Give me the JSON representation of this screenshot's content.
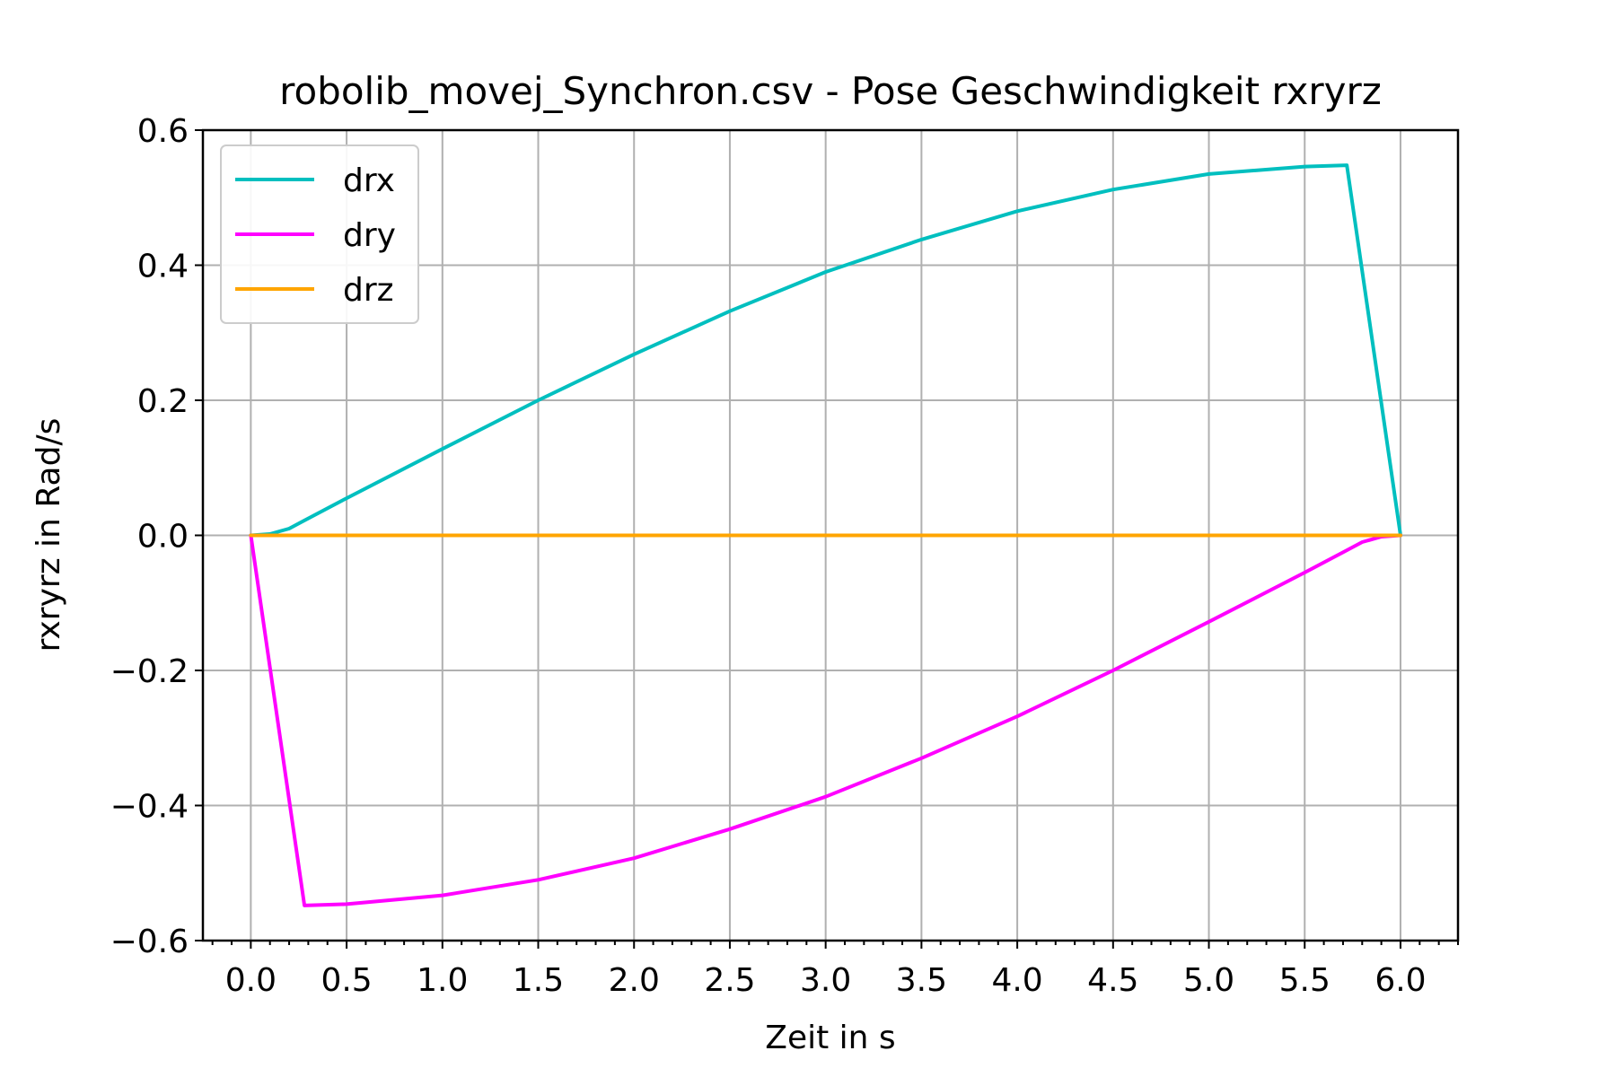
{
  "chart_data": {
    "type": "line",
    "title": "robolib_movej_Synchron.csv - Pose Geschwindigkeit rxryrz",
    "xlabel": "Zeit in s",
    "ylabel": "rxryrz in Rad/s",
    "xlim": [
      -0.25,
      6.3
    ],
    "ylim": [
      -0.6,
      0.6
    ],
    "xticks": [
      0.0,
      0.5,
      1.0,
      1.5,
      2.0,
      2.5,
      3.0,
      3.5,
      4.0,
      4.5,
      5.0,
      5.5,
      6.0
    ],
    "xtick_labels": [
      "0.0",
      "0.5",
      "1.0",
      "1.5",
      "2.0",
      "2.5",
      "3.0",
      "3.5",
      "4.0",
      "4.5",
      "5.0",
      "5.5",
      "6.0"
    ],
    "yticks": [
      -0.6,
      -0.4,
      -0.2,
      0.0,
      0.2,
      0.4,
      0.6
    ],
    "ytick_labels": [
      "−0.6",
      "−0.4",
      "−0.2",
      "0.0",
      "0.2",
      "0.4",
      "0.6"
    ],
    "grid": true,
    "legend_position": "upper left",
    "series": [
      {
        "name": "drx",
        "color": "#00bfbf",
        "x": [
          0.0,
          0.1,
          0.2,
          0.28,
          0.5,
          1.0,
          1.5,
          2.0,
          2.5,
          3.0,
          3.5,
          4.0,
          4.5,
          5.0,
          5.5,
          5.72,
          6.0
        ],
        "y": [
          0.0,
          0.002,
          0.01,
          0.022,
          0.055,
          0.128,
          0.2,
          0.268,
          0.332,
          0.39,
          0.438,
          0.48,
          0.512,
          0.535,
          0.546,
          0.548,
          0.0
        ]
      },
      {
        "name": "dry",
        "color": "#ff00ff",
        "x": [
          0.0,
          0.28,
          0.5,
          1.0,
          1.5,
          2.0,
          2.5,
          3.0,
          3.5,
          4.0,
          4.5,
          5.0,
          5.5,
          5.72,
          5.8,
          5.9,
          6.0
        ],
        "y": [
          0.0,
          -0.548,
          -0.546,
          -0.533,
          -0.51,
          -0.478,
          -0.435,
          -0.387,
          -0.33,
          -0.268,
          -0.2,
          -0.128,
          -0.055,
          -0.022,
          -0.01,
          -0.002,
          0.0
        ]
      },
      {
        "name": "drz",
        "color": "#ffa500",
        "x": [
          0.0,
          6.0
        ],
        "y": [
          0.0,
          0.0
        ]
      }
    ]
  }
}
